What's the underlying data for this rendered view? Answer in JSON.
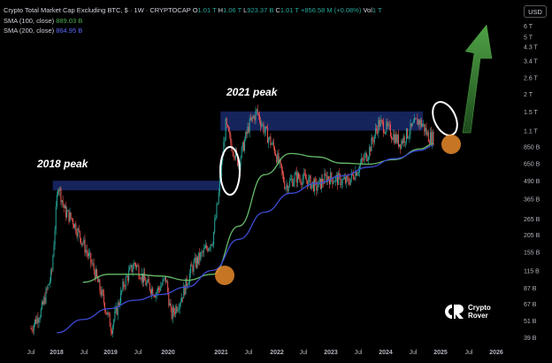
{
  "header": {
    "title": "Crypto Total Market Cap Excluding BTC, $ · 1W · CRYPTOCAP",
    "open_label": "O",
    "open": "1.01 T",
    "high_label": "H",
    "high": "1.06 T",
    "low_label": "L",
    "low": "923.37 B",
    "close_label": "C",
    "close": "1.01 T",
    "change": "+856.58 M (+0.08%)",
    "vol_label": "Vol",
    "vol": "1 T",
    "sma100_label": "SMA (100, close)",
    "sma100_value": "889.03 B",
    "sma200_label": "SMA (200, close)",
    "sma200_value": "864.95 B"
  },
  "currency_button": "USD",
  "annotations": {
    "peak_2018": "2018 peak",
    "peak_2021": "2021 peak"
  },
  "logo": {
    "line1": "Crypto",
    "line2": "Rover"
  },
  "colors": {
    "background": "#000000",
    "up": "#26a69a",
    "down": "#ef5350",
    "sma100": "#66bb6a",
    "sma200": "#3d4bd6",
    "zone": "#1a2a6c",
    "circle": "#e88a2a",
    "arrow": "#3f8f3a"
  },
  "chart_data": {
    "type": "line",
    "scale": "log",
    "x_ticks": [
      "Jul",
      "2018",
      "Jul",
      "2019",
      "Jul",
      "2020",
      "2021",
      "Jul",
      "2022",
      "Jul",
      "2023",
      "Jul",
      "2024",
      "Jul",
      "2025",
      "Jul",
      "2026"
    ],
    "y_ticks": [
      "6 T",
      "5 T",
      "4.3 T",
      "3.4 T",
      "2.6 T",
      "2 T",
      "1.5 T",
      "1.1 T",
      "850 B",
      "650 B",
      "490 B",
      "365 B",
      "265 B",
      "205 B",
      "155 B",
      "115 B",
      "87 B",
      "67 B",
      "51 B",
      "39 B"
    ],
    "ylim": [
      "39 B",
      "6 T"
    ],
    "series": [
      {
        "name": "SMA (100, close)",
        "x": [
          2017.5,
          2018.0,
          2018.5,
          2019.0,
          2019.5,
          2020.0,
          2020.5,
          2021.0,
          2021.5,
          2022.0,
          2022.5,
          2023.0,
          2023.5,
          2024.0,
          2024.5,
          2025.0,
          2025.25
        ],
        "values": [
          null,
          null,
          95,
          108,
          108,
          105,
          98,
          108,
          235,
          540,
          760,
          720,
          650,
          640,
          690,
          820,
          889
        ]
      },
      {
        "name": "SMA (200, close)",
        "x": [
          2017.5,
          2018.0,
          2018.5,
          2019.0,
          2019.5,
          2020.0,
          2020.5,
          2021.0,
          2021.5,
          2022.0,
          2022.5,
          2023.0,
          2023.5,
          2024.0,
          2024.5,
          2025.0,
          2025.25
        ],
        "values": [
          null,
          42,
          52,
          62,
          71,
          78,
          88,
          115,
          190,
          295,
          400,
          470,
          530,
          610,
          700,
          800,
          865
        ]
      },
      {
        "name": "Price (close)",
        "x": [
          2017.5,
          2017.7,
          2017.9,
          2018.02,
          2018.15,
          2018.3,
          2018.5,
          2018.7,
          2018.9,
          2019.05,
          2019.3,
          2019.5,
          2019.7,
          2019.9,
          2020.1,
          2020.2,
          2020.4,
          2020.6,
          2020.8,
          2021.0,
          2021.1,
          2021.25,
          2021.35,
          2021.5,
          2021.7,
          2021.85,
          2022.0,
          2022.2,
          2022.4,
          2022.6,
          2022.8,
          2023.0,
          2023.2,
          2023.4,
          2023.6,
          2023.8,
          2024.0,
          2024.2,
          2024.4,
          2024.6,
          2024.8,
          2024.95,
          2025.05,
          2025.15,
          2025.25
        ],
        "values": [
          45,
          60,
          110,
          470,
          300,
          260,
          180,
          120,
          70,
          45,
          95,
          130,
          95,
          80,
          100,
          55,
          75,
          120,
          150,
          190,
          350,
          1200,
          900,
          650,
          1200,
          1500,
          1100,
          800,
          450,
          520,
          500,
          440,
          520,
          500,
          480,
          600,
          780,
          1250,
          1100,
          900,
          1100,
          1300,
          1200,
          1000,
          980
        ]
      }
    ],
    "zones": [
      {
        "from": 2017.92,
        "to": 2021.15,
        "low": "420 B",
        "high": "490 B"
      },
      {
        "from": 2021.15,
        "to": 2025.05,
        "low": "1.1 T",
        "high": "1.5 T"
      }
    ]
  }
}
